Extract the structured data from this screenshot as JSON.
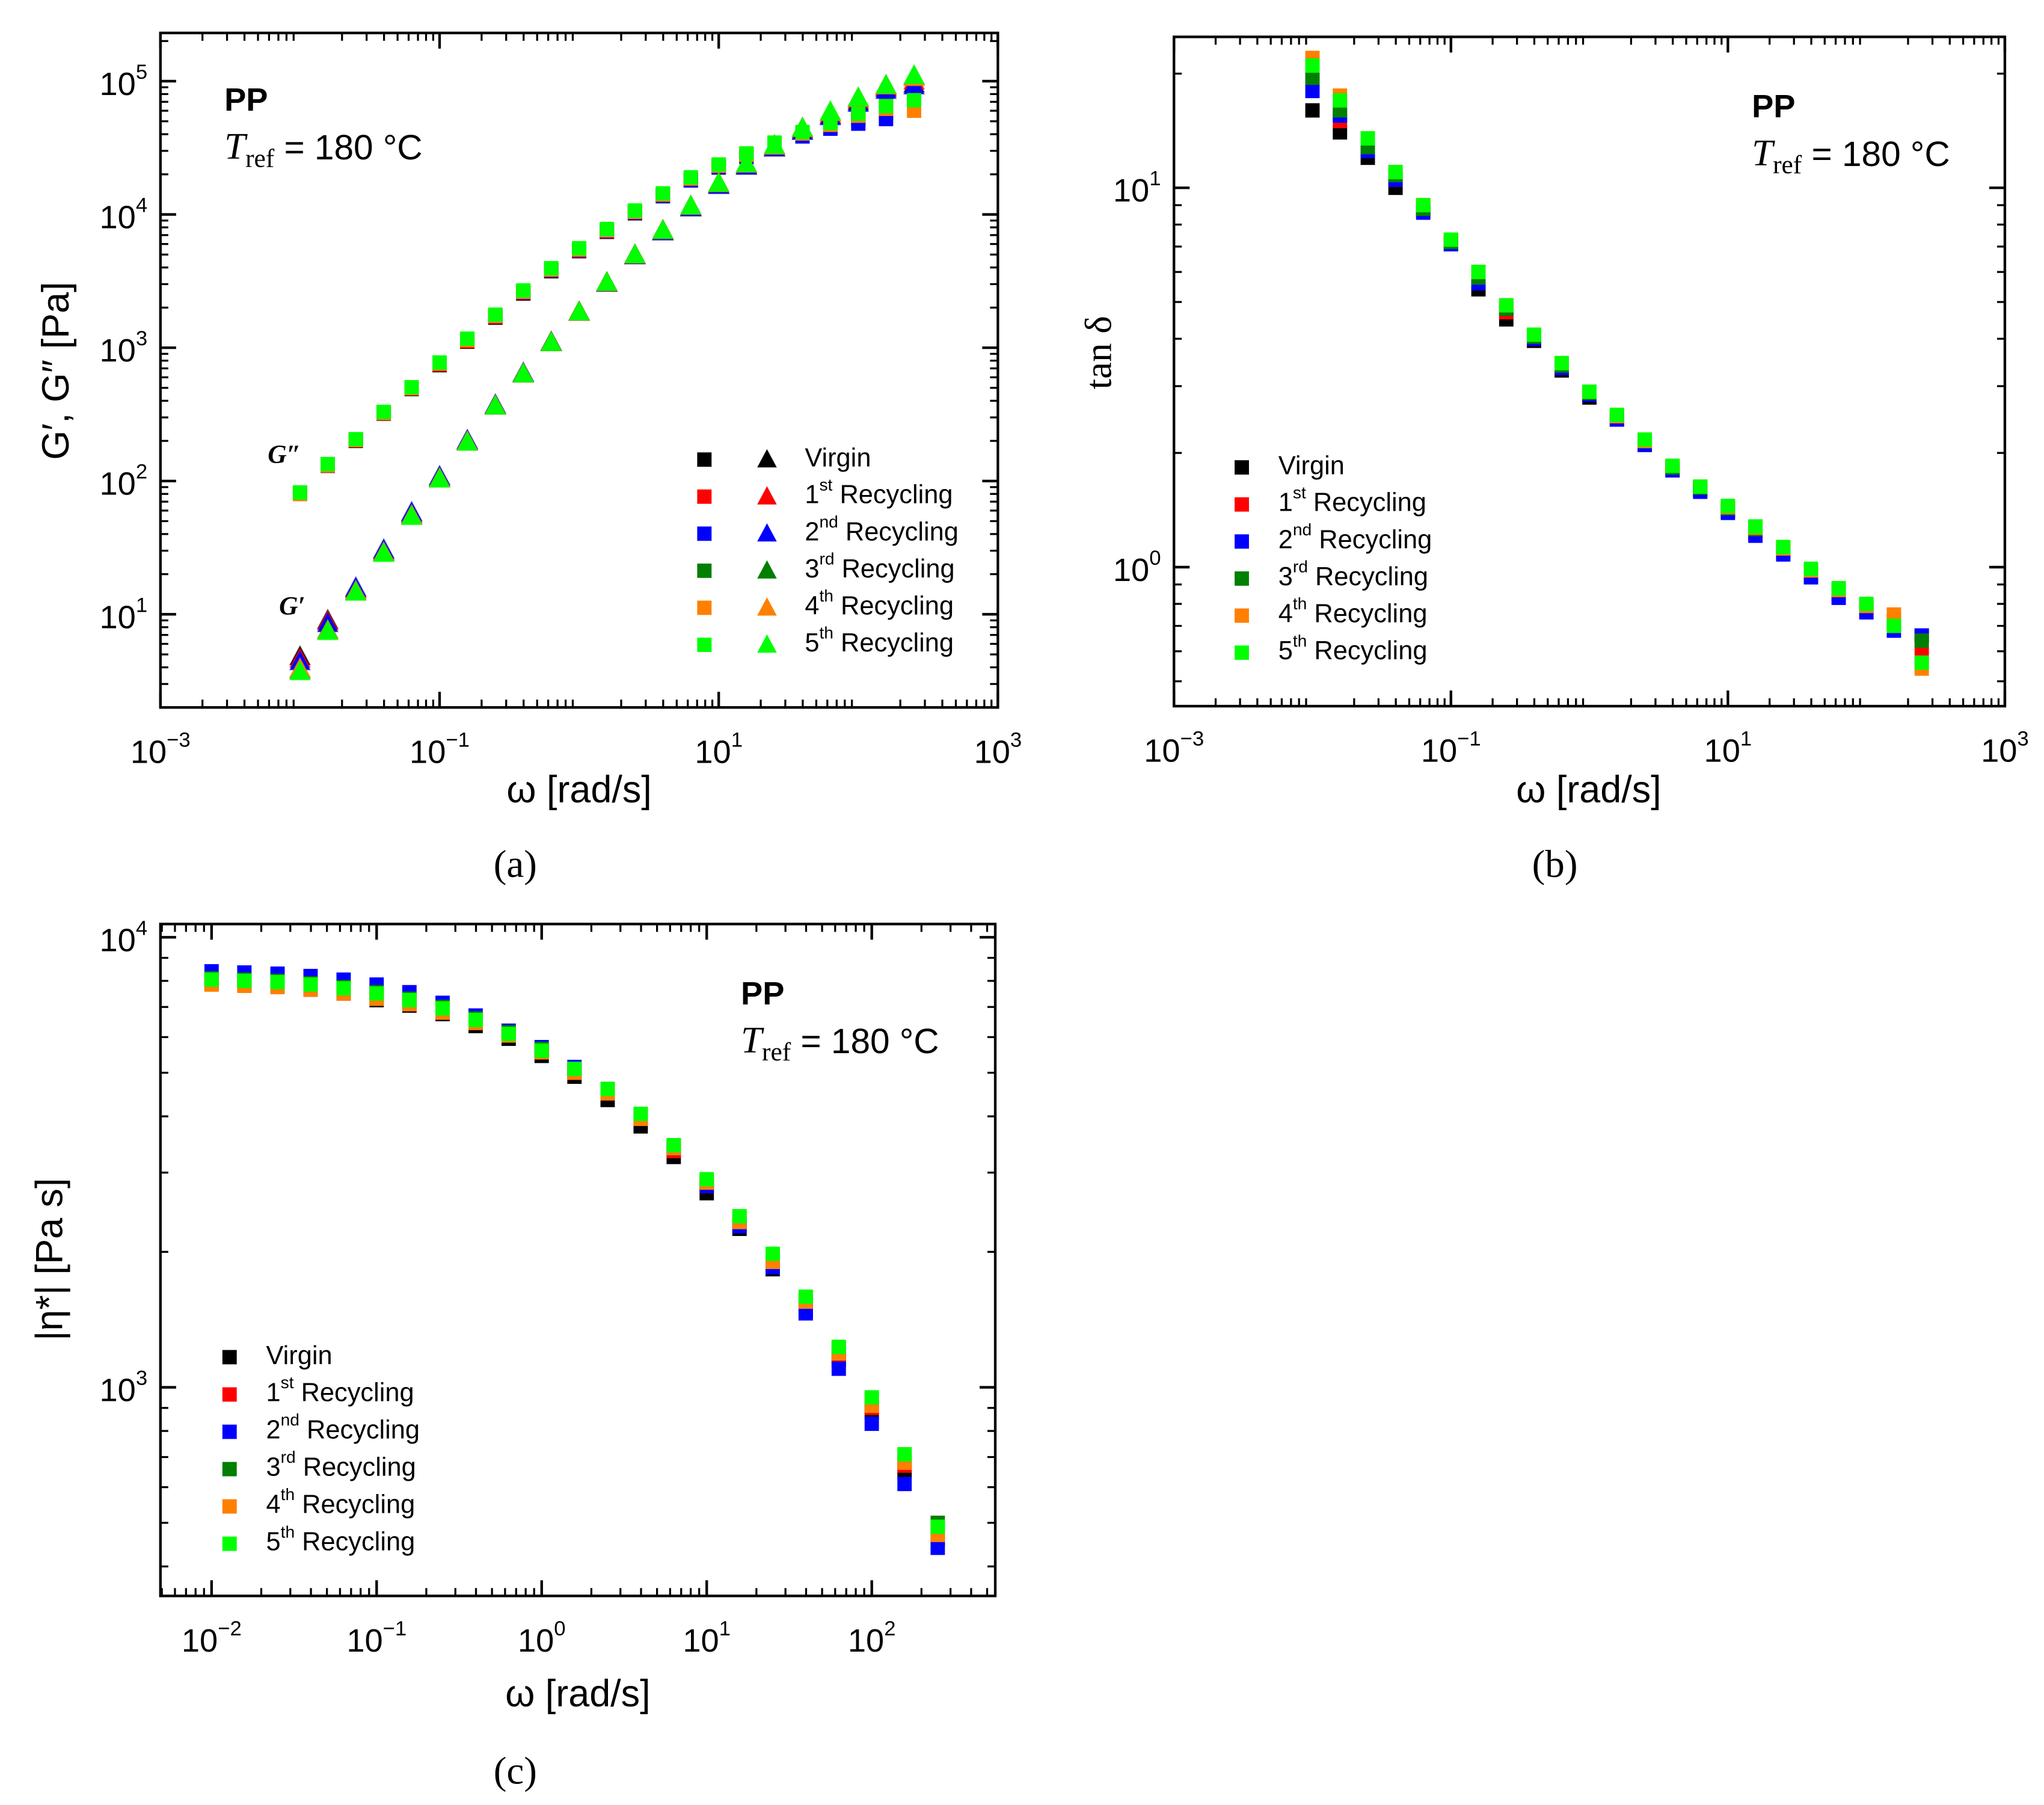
{
  "chart_data": [
    {
      "type": "scatter",
      "panel_label": "(a)",
      "xlabel": "ω [rad/s]",
      "ylabel": "G′, G″ [Pa]",
      "log_x": true,
      "log_y": true,
      "xlim": [
        0.001,
        1000
      ],
      "ylim": [
        2,
        230000
      ],
      "xticks": [
        {
          "value": 0.001,
          "label": "10",
          "exponent": "−3"
        },
        {
          "value": 0.1,
          "label": "10",
          "exponent": "−1"
        },
        {
          "value": 10,
          "label": "10",
          "exponent": "1"
        },
        {
          "value": 1000,
          "label": "10",
          "exponent": "3"
        }
      ],
      "yticks": [
        {
          "value": 10,
          "label": "10",
          "exponent": "1"
        },
        {
          "value": 100,
          "label": "10",
          "exponent": "2"
        },
        {
          "value": 1000,
          "label": "10",
          "exponent": "3"
        },
        {
          "value": 10000,
          "label": "10",
          "exponent": "4"
        },
        {
          "value": 100000,
          "label": "10",
          "exponent": "5"
        }
      ],
      "material": "PP",
      "tref": {
        "symbol": "T",
        "subscript": "ref",
        "text": " = 180 °C"
      },
      "curve_labels": {
        "g_double_prime": "G″",
        "g_prime": "G′"
      },
      "legend_corner": "lower right",
      "x": [
        0.01,
        0.0158,
        0.0251,
        0.0398,
        0.0631,
        0.1,
        0.158,
        0.251,
        0.398,
        0.631,
        1,
        1.58,
        2.51,
        3.98,
        6.31,
        10,
        15.8,
        25.1,
        39.8,
        63.1,
        100,
        158,
        251
      ],
      "series": [
        {
          "name": "Virgin",
          "color": "#000000",
          "g_double_prime": [
            80,
            130,
            200,
            320,
            490,
            740,
            1110,
            1680,
            2550,
            3750,
            5300,
            7400,
            10200,
            13700,
            18000,
            22500,
            27000,
            32500,
            39000,
            45000,
            52000,
            58000,
            88000
          ],
          "g_prime": [
            4.8,
            9,
            15.5,
            30,
            57,
            107,
            200,
            370,
            640,
            1100,
            1850,
            3050,
            4900,
            7400,
            11200,
            16500,
            23000,
            31500,
            42000,
            55000,
            70000,
            88000,
            95000
          ]
        },
        {
          "name": "1st Recycling",
          "color": "#ff0000",
          "g_double_prime": [
            81,
            131,
            202,
            322,
            495,
            750,
            1120,
            1700,
            2580,
            3800,
            5350,
            7450,
            10300,
            13900,
            18200,
            22800,
            27500,
            33000,
            40000,
            46000,
            54000,
            75000,
            80000
          ],
          "g_prime": [
            4.6,
            8.8,
            15.3,
            29.5,
            56,
            105,
            198,
            365,
            635,
            1090,
            1840,
            3040,
            4900,
            7450,
            11300,
            16700,
            23300,
            32000,
            43000,
            56000,
            72000,
            90000,
            100000
          ]
        },
        {
          "name": "2nd Recycling",
          "color": "#0000ff",
          "g_double_prime": [
            82,
            133,
            205,
            326,
            500,
            760,
            1140,
            1720,
            2600,
            3820,
            5400,
            7500,
            10300,
            13800,
            18100,
            22600,
            27200,
            32500,
            38500,
            44000,
            48000,
            52000,
            90000
          ],
          "g_prime": [
            4.4,
            8.5,
            15.8,
            30.5,
            58,
            108,
            202,
            372,
            645,
            1100,
            1850,
            3050,
            4900,
            7400,
            11200,
            16500,
            23000,
            31500,
            42000,
            54000,
            68000,
            85000,
            92000
          ]
        },
        {
          "name": "3rd Recycling",
          "color": "#007f00",
          "g_double_prime": [
            81,
            132,
            204,
            325,
            500,
            765,
            1150,
            1740,
            2640,
            3880,
            5480,
            7620,
            10500,
            14200,
            18700,
            23300,
            28200,
            34000,
            41000,
            48000,
            56000,
            65000,
            70000
          ],
          "g_prime": [
            3.8,
            7.6,
            14.8,
            29,
            55,
            104,
            196,
            365,
            635,
            1090,
            1850,
            3070,
            4950,
            7550,
            11500,
            17000,
            23800,
            32500,
            44000,
            58000,
            74000,
            92000,
            108000
          ]
        },
        {
          "name": "4th Recycling",
          "color": "#ff8000",
          "g_double_prime": [
            80,
            131,
            203,
            324,
            498,
            760,
            1140,
            1730,
            2630,
            3860,
            5460,
            7600,
            10450,
            14100,
            18600,
            23200,
            28000,
            33800,
            40500,
            47000,
            55000,
            62000,
            60000
          ],
          "g_prime": [
            3.9,
            7.5,
            14.9,
            29,
            55,
            104,
            197,
            366,
            636,
            1092,
            1852,
            3075,
            4960,
            7560,
            11500,
            17000,
            23800,
            32500,
            44000,
            58000,
            74000,
            92000,
            106000
          ]
        },
        {
          "name": "5th Recycling",
          "color": "#00ff00",
          "g_double_prime": [
            82,
            134,
            206,
            330,
            505,
            775,
            1170,
            1770,
            2690,
            3950,
            5580,
            7780,
            10700,
            14400,
            19000,
            23700,
            28700,
            34600,
            41500,
            48500,
            57000,
            65000,
            72000
          ],
          "g_prime": [
            3.7,
            7.4,
            14.6,
            28.5,
            54,
            103,
            195,
            364,
            634,
            1090,
            1850,
            3080,
            4970,
            7580,
            11550,
            17100,
            24000,
            33000,
            44500,
            59000,
            75000,
            93000,
            110000
          ]
        }
      ]
    },
    {
      "type": "scatter",
      "panel_label": "(b)",
      "xlabel": "ω [rad/s]",
      "ylabel": "tan δ",
      "log_x": true,
      "log_y": true,
      "xlim": [
        0.001,
        1000
      ],
      "ylim": [
        0.43,
        25
      ],
      "xticks": [
        {
          "value": 0.001,
          "label": "10",
          "exponent": "−3"
        },
        {
          "value": 0.1,
          "label": "10",
          "exponent": "−1"
        },
        {
          "value": 10,
          "label": "10",
          "exponent": "1"
        },
        {
          "value": 1000,
          "label": "10",
          "exponent": "3"
        }
      ],
      "yticks": [
        {
          "value": 1,
          "label": "10",
          "exponent": "0"
        },
        {
          "value": 10,
          "label": "10",
          "exponent": "1"
        }
      ],
      "material": "PP",
      "tref": {
        "symbol": "T",
        "subscript": "ref",
        "text": " = 180 °C"
      },
      "legend_corner": "lower left",
      "x": [
        0.01,
        0.0158,
        0.0251,
        0.0398,
        0.0631,
        0.1,
        0.158,
        0.251,
        0.398,
        0.631,
        1,
        1.58,
        2.51,
        3.98,
        6.31,
        10,
        15.8,
        25.1,
        39.8,
        63.1,
        100,
        158,
        251
      ],
      "series": [
        {
          "name": "Virgin",
          "color": "#000000",
          "values": [
            16,
            14,
            12,
            10,
            8.7,
            7.1,
            5.4,
            4.5,
            3.95,
            3.3,
            2.8,
            2.45,
            2.1,
            1.8,
            1.6,
            1.41,
            1.23,
            1.1,
            0.97,
            0.86,
            0.79,
            0.72,
            0.66
          ]
        },
        {
          "name": "1st Recycling",
          "color": "#ff0000",
          "values": [
            20,
            15,
            12.5,
            10.5,
            8.8,
            7.2,
            5.7,
            4.7,
            4.0,
            3.35,
            2.85,
            2.45,
            2.12,
            1.82,
            1.6,
            1.41,
            1.23,
            1.1,
            0.96,
            0.85,
            0.77,
            0.73,
            0.59
          ]
        },
        {
          "name": "2nd Recycling",
          "color": "#0000ff",
          "values": [
            18,
            15.5,
            12.5,
            10.5,
            8.6,
            7.1,
            5.6,
            4.8,
            4.0,
            3.35,
            2.85,
            2.45,
            2.1,
            1.8,
            1.58,
            1.39,
            1.21,
            1.08,
            0.94,
            0.83,
            0.76,
            0.68,
            0.66
          ]
        },
        {
          "name": "3rd Recycling",
          "color": "#007f00",
          "values": [
            19.5,
            16,
            12.8,
            10.8,
            8.8,
            7.2,
            5.8,
            4.8,
            4.05,
            3.4,
            2.88,
            2.5,
            2.15,
            1.83,
            1.62,
            1.43,
            1.26,
            1.12,
            0.98,
            0.87,
            0.79,
            0.72,
            0.64
          ]
        },
        {
          "name": "4th Recycling",
          "color": "#ff8000",
          "values": [
            22,
            17.5,
            13.5,
            11,
            9,
            7.3,
            6,
            4.9,
            4.1,
            3.45,
            2.9,
            2.5,
            2.15,
            1.85,
            1.63,
            1.44,
            1.27,
            1.12,
            0.98,
            0.87,
            0.79,
            0.75,
            0.54
          ]
        },
        {
          "name": "5th Recycling",
          "color": "#00ff00",
          "values": [
            21,
            17,
            13.5,
            11,
            9,
            7.3,
            6,
            4.9,
            4.1,
            3.45,
            2.9,
            2.52,
            2.17,
            1.85,
            1.63,
            1.45,
            1.28,
            1.13,
            0.99,
            0.88,
            0.8,
            0.7,
            0.56
          ]
        }
      ]
    },
    {
      "type": "scatter",
      "panel_label": "(c)",
      "xlabel": "ω [rad/s]",
      "ylabel": "|η*| [Pa s]",
      "log_x": true,
      "log_y": true,
      "xlim": [
        0.0049,
        560
      ],
      "ylim": [
        344,
        10700
      ],
      "xticks": [
        {
          "value": 0.01,
          "label": "10",
          "exponent": "−2"
        },
        {
          "value": 0.1,
          "label": "10",
          "exponent": "−1"
        },
        {
          "value": 1,
          "label": "10",
          "exponent": "0"
        },
        {
          "value": 10,
          "label": "10",
          "exponent": "1"
        },
        {
          "value": 100,
          "label": "10",
          "exponent": "2"
        }
      ],
      "yticks": [
        {
          "value": 1000,
          "label": "10",
          "exponent": "3"
        },
        {
          "value": 10000,
          "label": "10",
          "exponent": "4"
        }
      ],
      "material": "PP",
      "tref": {
        "symbol": "T",
        "subscript": "ref",
        "text": " = 180 °C"
      },
      "legend_corner": "lower left",
      "x": [
        0.01,
        0.0158,
        0.0251,
        0.0398,
        0.0631,
        0.1,
        0.158,
        0.251,
        0.398,
        0.631,
        1,
        1.58,
        2.51,
        3.98,
        6.31,
        10,
        15.8,
        25.1,
        39.8,
        63.1,
        100,
        158,
        251
      ],
      "series": [
        {
          "name": "Virgin",
          "color": "#000000",
          "values": [
            7900,
            7850,
            7800,
            7650,
            7500,
            7250,
            7050,
            6750,
            6350,
            5950,
            5450,
            4900,
            4350,
            3800,
            3250,
            2700,
            2250,
            1830,
            1480,
            1150,
            880,
            650,
            460
          ]
        },
        {
          "name": "1st Recycling",
          "color": "#ff0000",
          "values": [
            8000,
            7950,
            7900,
            7800,
            7650,
            7450,
            7250,
            6950,
            6550,
            6100,
            5600,
            5050,
            4500,
            3950,
            3350,
            2800,
            2300,
            1880,
            1520,
            1170,
            900,
            670,
            470
          ]
        },
        {
          "name": "2nd Recycling",
          "color": "#0000ff",
          "values": [
            8400,
            8350,
            8300,
            8200,
            8050,
            7850,
            7550,
            7150,
            6700,
            6200,
            5700,
            5150,
            4600,
            4000,
            3400,
            2800,
            2280,
            1850,
            1460,
            1100,
            830,
            610,
            440
          ]
        },
        {
          "name": "3rd Recycling",
          "color": "#007f00",
          "values": [
            8100,
            8050,
            8000,
            7900,
            7750,
            7550,
            7300,
            7000,
            6600,
            6150,
            5650,
            5100,
            4600,
            4050,
            3450,
            2870,
            2380,
            1960,
            1580,
            1220,
            940,
            700,
            500
          ]
        },
        {
          "name": "4th Recycling",
          "color": "#ff8000",
          "values": [
            7850,
            7800,
            7750,
            7650,
            7500,
            7300,
            7100,
            6800,
            6450,
            6050,
            5550,
            5000,
            4500,
            3950,
            3400,
            2850,
            2330,
            1900,
            1550,
            1190,
            910,
            680,
            470
          ]
        },
        {
          "name": "5th Recycling",
          "color": "#00ff00",
          "values": [
            8050,
            8000,
            7950,
            7850,
            7700,
            7500,
            7250,
            6950,
            6550,
            6100,
            5600,
            5100,
            4600,
            4050,
            3450,
            2900,
            2400,
            1980,
            1590,
            1230,
            950,
            710,
            490
          ]
        }
      ]
    }
  ]
}
